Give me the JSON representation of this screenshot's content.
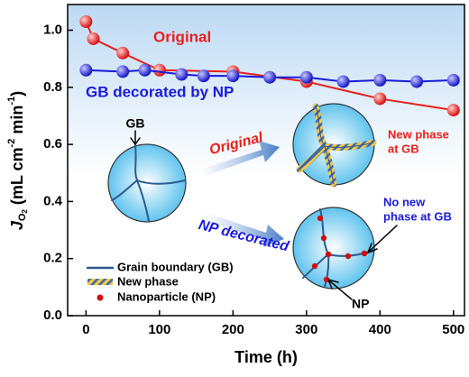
{
  "chart_data": {
    "type": "line",
    "xlabel": "Time (h)",
    "ylabel_parts": [
      "J",
      "O",
      "2",
      " (mL cm",
      "-2",
      " min",
      "-1",
      ")"
    ],
    "xlim": [
      -25,
      515
    ],
    "ylim": [
      0,
      1.09
    ],
    "xticks": [
      0,
      100,
      200,
      300,
      400,
      500
    ],
    "yticks": [
      {
        "value": 0,
        "label": "0.0"
      },
      0.2,
      0.4,
      0.6,
      0.8,
      {
        "value": 1,
        "label": "1.0"
      }
    ],
    "series": [
      {
        "name": "Original",
        "color": "#e8211c",
        "x": [
          0,
          10,
          50,
          100,
          200,
          300,
          400,
          500
        ],
        "values": [
          1.03,
          0.97,
          0.92,
          0.86,
          0.855,
          0.82,
          0.76,
          0.72
        ]
      },
      {
        "name": "GB decorated by NP",
        "color": "#1a1adb",
        "x": [
          0,
          50,
          80,
          130,
          160,
          200,
          250,
          300,
          350,
          400,
          450,
          500
        ],
        "values": [
          0.86,
          0.855,
          0.86,
          0.845,
          0.84,
          0.84,
          0.835,
          0.835,
          0.82,
          0.825,
          0.82,
          0.825
        ]
      }
    ],
    "schematic": {
      "gb": "GB",
      "arrow_top": "Original",
      "arrow_bottom": "NP decorated",
      "new_phase": [
        "New phase",
        "at GB"
      ],
      "no_new_phase": [
        "No new",
        "phase at GB"
      ],
      "np": "NP",
      "legend": [
        "Grain boundary (GB)",
        "New phase",
        "Nanoparticle (NP)"
      ]
    }
  }
}
